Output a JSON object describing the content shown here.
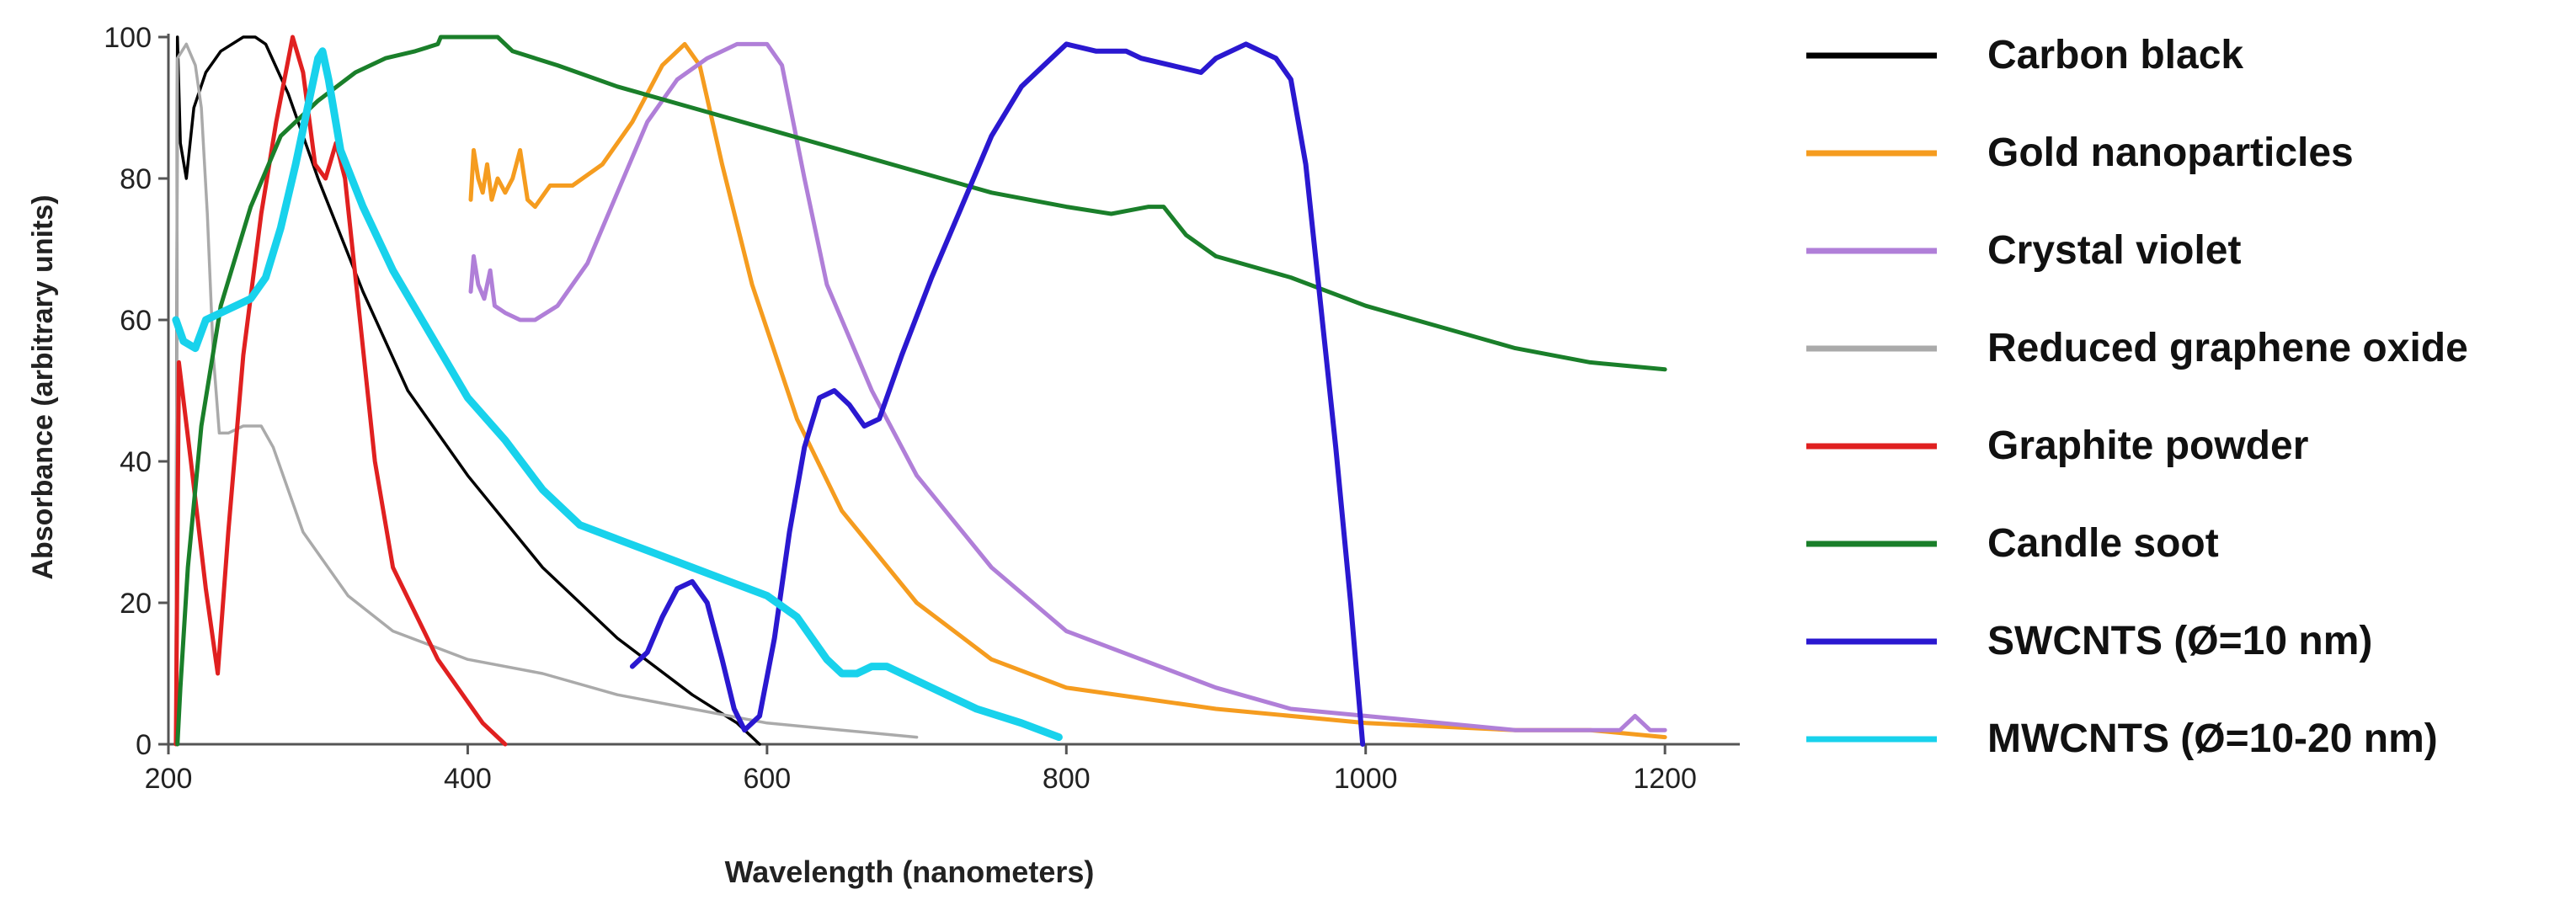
{
  "chart_data": {
    "type": "line",
    "title": "",
    "xlabel": "Wavelength (nanometers)",
    "ylabel": "Absorbance (arbitrary units)",
    "xlim": [
      200,
      1250
    ],
    "ylim": [
      0,
      100
    ],
    "xticks": [
      200,
      400,
      600,
      800,
      1000,
      1200
    ],
    "yticks": [
      0,
      20,
      40,
      60,
      80,
      100
    ],
    "grid": false,
    "legend_position": "right",
    "series": [
      {
        "name": "Carbon black",
        "color": "#000000",
        "points": [
          [
            205,
            0
          ],
          [
            206,
            100
          ],
          [
            208,
            85
          ],
          [
            212,
            80
          ],
          [
            217,
            90
          ],
          [
            225,
            95
          ],
          [
            235,
            98
          ],
          [
            250,
            100
          ],
          [
            258,
            100
          ],
          [
            265,
            99
          ],
          [
            280,
            92
          ],
          [
            300,
            80
          ],
          [
            330,
            64
          ],
          [
            360,
            50
          ],
          [
            400,
            38
          ],
          [
            450,
            25
          ],
          [
            500,
            15
          ],
          [
            550,
            7
          ],
          [
            580,
            3
          ],
          [
            595,
            0
          ]
        ]
      },
      {
        "name": "Gold nanoparticles",
        "color": "#f59c1f",
        "points": [
          [
            402,
            77
          ],
          [
            404,
            84
          ],
          [
            407,
            80
          ],
          [
            410,
            78
          ],
          [
            413,
            82
          ],
          [
            416,
            77
          ],
          [
            420,
            80
          ],
          [
            425,
            78
          ],
          [
            430,
            80
          ],
          [
            435,
            84
          ],
          [
            440,
            77
          ],
          [
            445,
            76
          ],
          [
            455,
            79
          ],
          [
            470,
            79
          ],
          [
            490,
            82
          ],
          [
            510,
            88
          ],
          [
            530,
            96
          ],
          [
            545,
            99
          ],
          [
            555,
            96
          ],
          [
            570,
            82
          ],
          [
            590,
            65
          ],
          [
            620,
            46
          ],
          [
            650,
            33
          ],
          [
            700,
            20
          ],
          [
            750,
            12
          ],
          [
            800,
            8
          ],
          [
            900,
            5
          ],
          [
            1000,
            3
          ],
          [
            1100,
            2
          ],
          [
            1150,
            2
          ],
          [
            1200,
            1
          ]
        ]
      },
      {
        "name": "Crystal violet",
        "color": "#b07fd8",
        "points": [
          [
            402,
            64
          ],
          [
            404,
            69
          ],
          [
            407,
            65
          ],
          [
            411,
            63
          ],
          [
            415,
            67
          ],
          [
            418,
            62
          ],
          [
            425,
            61
          ],
          [
            435,
            60
          ],
          [
            445,
            60
          ],
          [
            460,
            62
          ],
          [
            480,
            68
          ],
          [
            500,
            78
          ],
          [
            520,
            88
          ],
          [
            540,
            94
          ],
          [
            560,
            97
          ],
          [
            580,
            99
          ],
          [
            600,
            99
          ],
          [
            610,
            96
          ],
          [
            625,
            80
          ],
          [
            640,
            65
          ],
          [
            670,
            50
          ],
          [
            700,
            38
          ],
          [
            750,
            25
          ],
          [
            800,
            16
          ],
          [
            850,
            12
          ],
          [
            900,
            8
          ],
          [
            950,
            5
          ],
          [
            1000,
            4
          ],
          [
            1050,
            3
          ],
          [
            1100,
            2
          ],
          [
            1170,
            2
          ],
          [
            1180,
            4
          ],
          [
            1190,
            2
          ],
          [
            1200,
            2
          ]
        ]
      },
      {
        "name": "Reduced graphene oxide",
        "color": "#aaaaaa",
        "points": [
          [
            205,
            0
          ],
          [
            206,
            97
          ],
          [
            212,
            99
          ],
          [
            218,
            96
          ],
          [
            222,
            90
          ],
          [
            226,
            75
          ],
          [
            230,
            55
          ],
          [
            234,
            44
          ],
          [
            240,
            44
          ],
          [
            250,
            45
          ],
          [
            262,
            45
          ],
          [
            270,
            42
          ],
          [
            290,
            30
          ],
          [
            320,
            21
          ],
          [
            350,
            16
          ],
          [
            400,
            12
          ],
          [
            450,
            10
          ],
          [
            500,
            7
          ],
          [
            550,
            5
          ],
          [
            600,
            3
          ],
          [
            650,
            2
          ],
          [
            700,
            1
          ]
        ]
      },
      {
        "name": "Graphite powder",
        "color": "#e02020",
        "points": [
          [
            205,
            0
          ],
          [
            207,
            54
          ],
          [
            215,
            40
          ],
          [
            225,
            22
          ],
          [
            233,
            10
          ],
          [
            240,
            30
          ],
          [
            250,
            55
          ],
          [
            262,
            75
          ],
          [
            272,
            88
          ],
          [
            283,
            100
          ],
          [
            290,
            95
          ],
          [
            298,
            82
          ],
          [
            305,
            80
          ],
          [
            312,
            85
          ],
          [
            318,
            80
          ],
          [
            328,
            60
          ],
          [
            338,
            40
          ],
          [
            350,
            25
          ],
          [
            380,
            12
          ],
          [
            410,
            3
          ],
          [
            425,
            0
          ]
        ]
      },
      {
        "name": "Candle soot",
        "color": "#1a7f2a",
        "points": [
          [
            206,
            0
          ],
          [
            208,
            8
          ],
          [
            213,
            25
          ],
          [
            222,
            45
          ],
          [
            235,
            62
          ],
          [
            255,
            76
          ],
          [
            275,
            86
          ],
          [
            300,
            91
          ],
          [
            325,
            95
          ],
          [
            345,
            97
          ],
          [
            365,
            98
          ],
          [
            380,
            99
          ],
          [
            382,
            100
          ],
          [
            420,
            100
          ],
          [
            430,
            98
          ],
          [
            460,
            96
          ],
          [
            500,
            93
          ],
          [
            550,
            90
          ],
          [
            600,
            87
          ],
          [
            650,
            84
          ],
          [
            700,
            81
          ],
          [
            750,
            78
          ],
          [
            800,
            76
          ],
          [
            830,
            75
          ],
          [
            855,
            76
          ],
          [
            865,
            76
          ],
          [
            880,
            72
          ],
          [
            900,
            69
          ],
          [
            950,
            66
          ],
          [
            1000,
            62
          ],
          [
            1050,
            59
          ],
          [
            1100,
            56
          ],
          [
            1150,
            54
          ],
          [
            1200,
            53
          ]
        ]
      },
      {
        "name": "SWCNTS (Ø=10 nm)",
        "color": "#2a18d0",
        "points": [
          [
            510,
            11
          ],
          [
            520,
            13
          ],
          [
            530,
            18
          ],
          [
            540,
            22
          ],
          [
            550,
            23
          ],
          [
            560,
            20
          ],
          [
            570,
            12
          ],
          [
            578,
            5
          ],
          [
            585,
            2
          ],
          [
            595,
            4
          ],
          [
            605,
            15
          ],
          [
            615,
            30
          ],
          [
            625,
            42
          ],
          [
            635,
            49
          ],
          [
            645,
            50
          ],
          [
            655,
            48
          ],
          [
            665,
            45
          ],
          [
            675,
            46
          ],
          [
            690,
            55
          ],
          [
            710,
            66
          ],
          [
            730,
            76
          ],
          [
            750,
            86
          ],
          [
            770,
            93
          ],
          [
            790,
            97
          ],
          [
            800,
            99
          ],
          [
            820,
            98
          ],
          [
            840,
            98
          ],
          [
            850,
            97
          ],
          [
            870,
            96
          ],
          [
            890,
            95
          ],
          [
            900,
            97
          ],
          [
            920,
            99
          ],
          [
            940,
            97
          ],
          [
            950,
            94
          ],
          [
            960,
            82
          ],
          [
            970,
            62
          ],
          [
            980,
            42
          ],
          [
            990,
            20
          ],
          [
            998,
            0
          ]
        ]
      },
      {
        "name": "MWCNTS (Ø=10-20 nm)",
        "color": "#18d2ec",
        "points": [
          [
            205,
            60
          ],
          [
            210,
            57
          ],
          [
            218,
            56
          ],
          [
            225,
            60
          ],
          [
            235,
            61
          ],
          [
            245,
            62
          ],
          [
            255,
            63
          ],
          [
            265,
            66
          ],
          [
            275,
            73
          ],
          [
            285,
            82
          ],
          [
            295,
            92
          ],
          [
            300,
            97
          ],
          [
            303,
            98
          ],
          [
            307,
            94
          ],
          [
            315,
            84
          ],
          [
            330,
            76
          ],
          [
            350,
            67
          ],
          [
            375,
            58
          ],
          [
            400,
            49
          ],
          [
            425,
            43
          ],
          [
            450,
            36
          ],
          [
            475,
            31
          ],
          [
            500,
            29
          ],
          [
            525,
            27
          ],
          [
            550,
            25
          ],
          [
            575,
            23
          ],
          [
            600,
            21
          ],
          [
            620,
            18
          ],
          [
            640,
            12
          ],
          [
            650,
            10
          ],
          [
            660,
            10
          ],
          [
            670,
            11
          ],
          [
            680,
            11
          ],
          [
            690,
            10
          ],
          [
            710,
            8
          ],
          [
            740,
            5
          ],
          [
            770,
            3
          ],
          [
            795,
            1
          ]
        ]
      }
    ]
  }
}
